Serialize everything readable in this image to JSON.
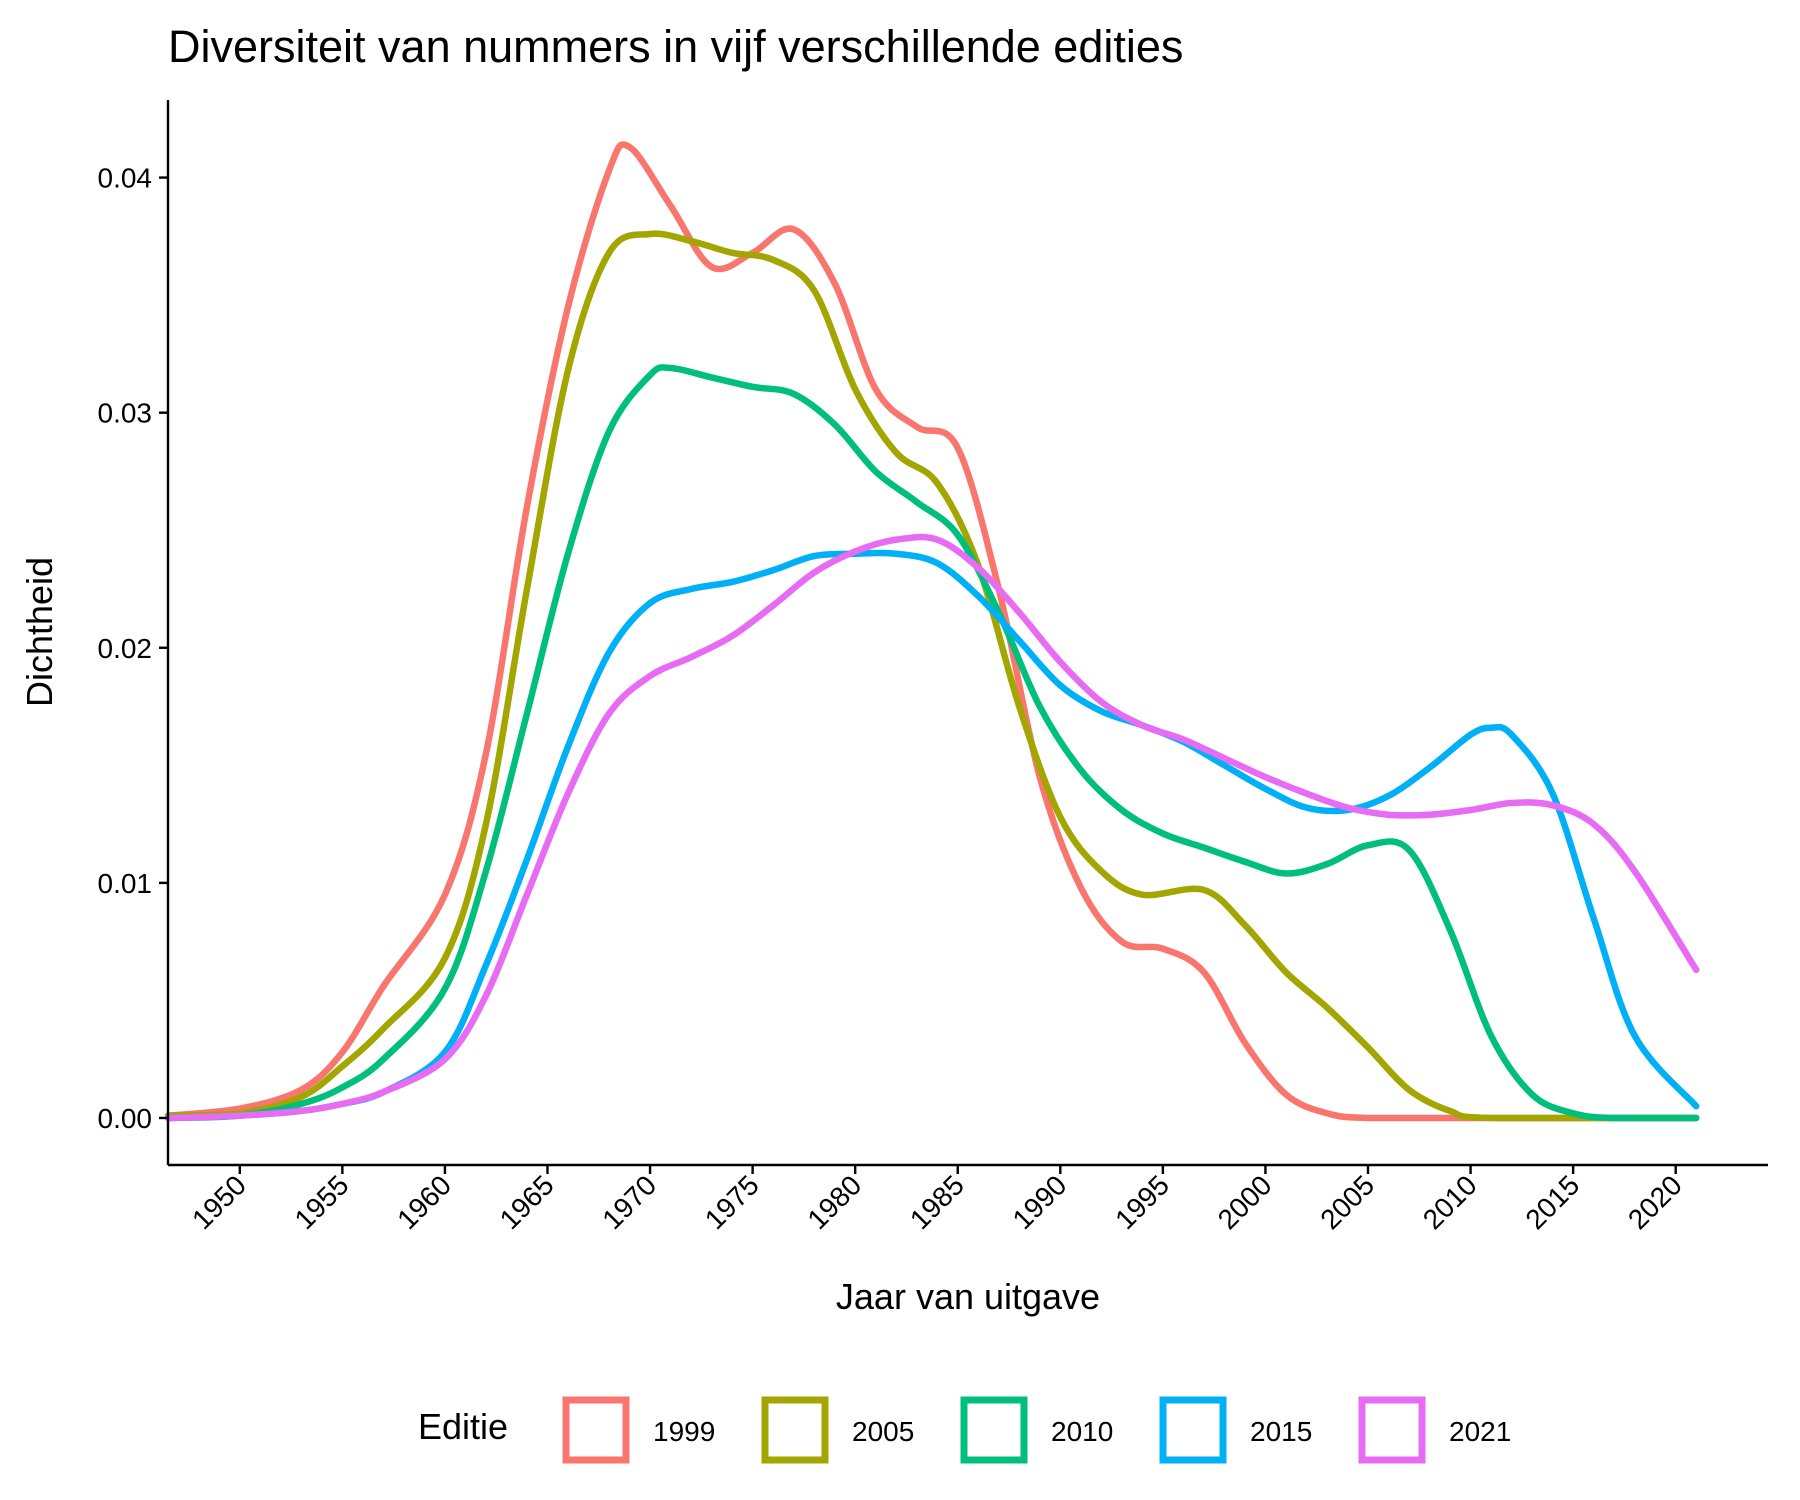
{
  "chart_data": {
    "type": "line",
    "title": "Diversiteit van nummers in vijf verschillende edities",
    "xlabel": "Jaar van uitgave",
    "ylabel": "Dichtheid",
    "xlim": [
      1946.5,
      2024.5
    ],
    "ylim": [
      -0.002,
      0.0433
    ],
    "x_ticks": [
      1950,
      1955,
      1960,
      1965,
      1970,
      1975,
      1980,
      1985,
      1990,
      1995,
      2000,
      2005,
      2010,
      2015,
      2020
    ],
    "y_ticks": [
      0.0,
      0.01,
      0.02,
      0.03,
      0.04
    ],
    "y_tick_labels": [
      "0.00",
      "0.01",
      "0.02",
      "0.03",
      "0.04"
    ],
    "grid": false,
    "legend": {
      "title": "Editie",
      "position": "bottom"
    },
    "series": [
      {
        "name": "1999",
        "color": "#F8766D",
        "x": [
          1946.5,
          1950,
          1953,
          1955,
          1957,
          1960,
          1962,
          1964,
          1966,
          1968,
          1969,
          1971,
          1973,
          1975,
          1977,
          1979,
          1981,
          1983,
          1985,
          1987,
          1989,
          1991,
          1993,
          1995,
          1997,
          1999,
          2001,
          2003,
          2005,
          2010,
          2021
        ],
        "y": [
          0.0001,
          0.0004,
          0.0012,
          0.0028,
          0.0056,
          0.0095,
          0.0155,
          0.026,
          0.0345,
          0.0403,
          0.0413,
          0.0388,
          0.0362,
          0.0368,
          0.0378,
          0.0355,
          0.031,
          0.0294,
          0.0285,
          0.0225,
          0.0145,
          0.0098,
          0.0075,
          0.0072,
          0.0062,
          0.0032,
          0.001,
          0.0002,
          0.0,
          0.0,
          0.0
        ]
      },
      {
        "name": "2005",
        "color": "#A3A500",
        "x": [
          1946.5,
          1950,
          1953,
          1955,
          1957,
          1960,
          1962,
          1964,
          1966,
          1968,
          1970,
          1972,
          1974,
          1976,
          1978,
          1980,
          1982,
          1984,
          1986,
          1988,
          1990,
          1992,
          1994,
          1997,
          1999,
          2001,
          2003,
          2005,
          2007,
          2009,
          2011,
          2021
        ],
        "y": [
          0.0001,
          0.0002,
          0.0009,
          0.0022,
          0.0038,
          0.0068,
          0.0125,
          0.0225,
          0.0318,
          0.0368,
          0.0376,
          0.0373,
          0.0368,
          0.0365,
          0.0352,
          0.031,
          0.0283,
          0.027,
          0.0235,
          0.0175,
          0.0128,
          0.0105,
          0.0095,
          0.0097,
          0.0082,
          0.0062,
          0.0047,
          0.003,
          0.0012,
          0.0003,
          0.0,
          0.0
        ]
      },
      {
        "name": "2010",
        "color": "#00BF7D",
        "x": [
          1946.5,
          1950,
          1953,
          1955,
          1957,
          1960,
          1962,
          1964,
          1966,
          1968,
          1970,
          1971,
          1973,
          1975,
          1977,
          1979,
          1981,
          1983,
          1985,
          1987,
          1989,
          1991,
          1993,
          1995,
          1997,
          1999,
          2001,
          2003,
          2005,
          2007,
          2009,
          2011,
          2013,
          2015,
          2017,
          2021
        ],
        "y": [
          0.0,
          0.0001,
          0.0006,
          0.0013,
          0.0025,
          0.0055,
          0.0105,
          0.0172,
          0.024,
          0.0292,
          0.0316,
          0.0319,
          0.0315,
          0.0311,
          0.0308,
          0.0295,
          0.0275,
          0.0262,
          0.0248,
          0.0215,
          0.0175,
          0.0148,
          0.0131,
          0.0121,
          0.0115,
          0.0109,
          0.0104,
          0.0108,
          0.0116,
          0.0114,
          0.008,
          0.0035,
          0.001,
          0.0002,
          0.0,
          0.0
        ]
      },
      {
        "name": "2015",
        "color": "#00B0F6",
        "x": [
          1946.5,
          1950,
          1953,
          1955,
          1957,
          1960,
          1962,
          1964,
          1966,
          1968,
          1970,
          1972,
          1974,
          1976,
          1978,
          1980,
          1982,
          1984,
          1986,
          1988,
          1990,
          1992,
          1994,
          1996,
          1998,
          2000,
          2002,
          2004,
          2006,
          2008,
          2010,
          2011,
          2012,
          2014,
          2016,
          2018,
          2021
        ],
        "y": [
          0.0,
          0.0001,
          0.0003,
          0.0006,
          0.0011,
          0.0028,
          0.0065,
          0.011,
          0.0158,
          0.0198,
          0.0219,
          0.0225,
          0.0228,
          0.0233,
          0.0239,
          0.024,
          0.024,
          0.0236,
          0.0222,
          0.0203,
          0.0184,
          0.0173,
          0.0167,
          0.016,
          0.015,
          0.014,
          0.0132,
          0.0131,
          0.0137,
          0.0149,
          0.0163,
          0.0166,
          0.0163,
          0.0138,
          0.0085,
          0.0035,
          0.0005
        ]
      },
      {
        "name": "2021",
        "color": "#E76BF3",
        "x": [
          1946.5,
          1950,
          1953,
          1955,
          1957,
          1960,
          1962,
          1964,
          1966,
          1968,
          1970,
          1972,
          1974,
          1976,
          1978,
          1980,
          1982,
          1984,
          1986,
          1988,
          1990,
          1992,
          1994,
          1996,
          1998,
          2000,
          2002,
          2004,
          2006,
          2008,
          2010,
          2012,
          2014,
          2016,
          2018,
          2021
        ],
        "y": [
          0.0,
          0.0001,
          0.0003,
          0.0006,
          0.0011,
          0.0025,
          0.0052,
          0.0095,
          0.0138,
          0.0172,
          0.0188,
          0.0196,
          0.0205,
          0.0218,
          0.0232,
          0.0241,
          0.0246,
          0.0246,
          0.0234,
          0.0215,
          0.0194,
          0.0177,
          0.0167,
          0.0161,
          0.0153,
          0.0145,
          0.0138,
          0.0132,
          0.0129,
          0.0129,
          0.0131,
          0.0134,
          0.0133,
          0.0125,
          0.0105,
          0.0063
        ]
      }
    ]
  }
}
